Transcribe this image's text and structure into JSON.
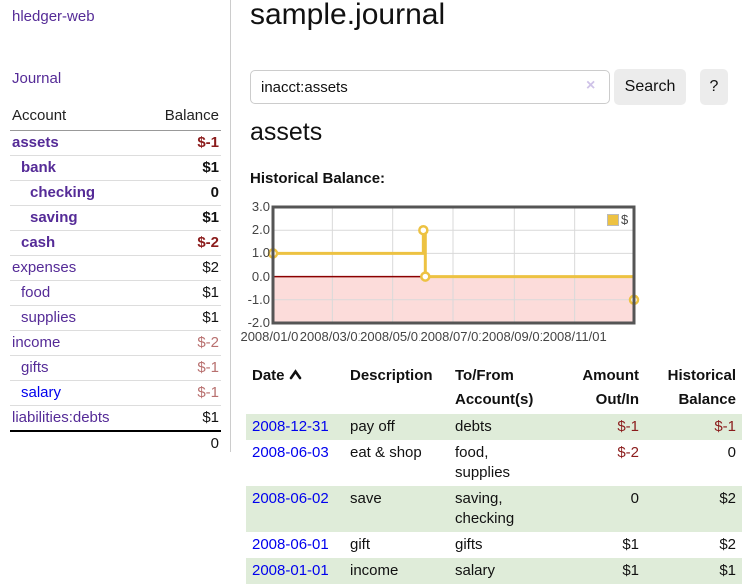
{
  "theme": {
    "purple": "#552b97",
    "blue": "#0000ee",
    "neg_strong": "#8b1c1c",
    "neg_weak": "#b8706f",
    "row_green": "#dfecd9",
    "gold": "#edc242",
    "pink": "#fcdcda",
    "dark_red": "#8b0000"
  },
  "sidebar": {
    "app_title": "hledger-web",
    "journal_label": "Journal",
    "accounts_table": {
      "headers": {
        "account": "Account",
        "balance": "Balance"
      },
      "rows": [
        {
          "name": "assets",
          "balance": "$-1",
          "indent": 0,
          "bold": true,
          "balance_style": "neg-strong",
          "link_style": "visited"
        },
        {
          "name": "bank",
          "balance": "$1",
          "indent": 1,
          "bold": true,
          "balance_style": "pos",
          "link_style": "visited"
        },
        {
          "name": "checking",
          "balance": "0",
          "indent": 2,
          "bold": true,
          "balance_style": "pos",
          "link_style": "visited"
        },
        {
          "name": "saving",
          "balance": "$1",
          "indent": 2,
          "bold": true,
          "balance_style": "pos",
          "link_style": "visited"
        },
        {
          "name": "cash",
          "balance": "$-2",
          "indent": 1,
          "bold": true,
          "balance_style": "neg-strong",
          "link_style": "visited"
        },
        {
          "name": "expenses",
          "balance": "$2",
          "indent": 0,
          "bold": false,
          "balance_style": "pos",
          "link_style": "visited"
        },
        {
          "name": "food",
          "balance": "$1",
          "indent": 1,
          "bold": false,
          "balance_style": "pos",
          "link_style": "visited"
        },
        {
          "name": "supplies",
          "balance": "$1",
          "indent": 1,
          "bold": false,
          "balance_style": "pos",
          "link_style": "visited"
        },
        {
          "name": "income",
          "balance": "$-2",
          "indent": 0,
          "bold": false,
          "balance_style": "neg-weak",
          "link_style": "visited"
        },
        {
          "name": "gifts",
          "balance": "$-1",
          "indent": 1,
          "bold": false,
          "balance_style": "neg-weak",
          "link_style": "visited"
        },
        {
          "name": "salary",
          "balance": "$-1",
          "indent": 1,
          "bold": false,
          "balance_style": "neg-weak",
          "link_style": "unvisited"
        },
        {
          "name": "liabilities:debts",
          "balance": "$1",
          "indent": 0,
          "bold": false,
          "balance_style": "pos",
          "link_style": "visited"
        }
      ],
      "total": "0"
    }
  },
  "header": {
    "title": "sample.journal",
    "search": {
      "value": "inacct:assets",
      "clear_icon": "×",
      "search_label": "Search",
      "help_label": "?"
    }
  },
  "account_view": {
    "heading": "assets",
    "chart_label": "Historical Balance:"
  },
  "chart_data": {
    "type": "line",
    "title": "Historical Balance",
    "step": true,
    "xlim": [
      "2008-01-01",
      "2008-12-31"
    ],
    "ylim": [
      -2,
      3
    ],
    "x_ticks": [
      "2008/01/01",
      "2008/03/01",
      "2008/05/01",
      "2008/07/01",
      "2008/09/01",
      "2008/11/01"
    ],
    "y_ticks": [
      "3.0",
      "2.0",
      "1.0",
      "0.0",
      "-1.0",
      "-2.0"
    ],
    "grid": true,
    "legend": [
      {
        "label": "$",
        "color": "#edc242"
      }
    ],
    "series": [
      {
        "name": "$",
        "points": [
          [
            "2008-01-01",
            1
          ],
          [
            "2008-06-01",
            2
          ],
          [
            "2008-06-03",
            0
          ],
          [
            "2008-12-31",
            -1
          ]
        ]
      }
    ],
    "line_color": "#edc242",
    "marker_fill": "#ffffff",
    "zero_line_color": "#8b0000",
    "negative_region_fill": "#fcdcda",
    "grid_color": "#d9d9d9",
    "border_color": "#555555"
  },
  "register": {
    "headers": {
      "date": "Date",
      "sort": "ascending",
      "description": "Description",
      "accounts": "To/From Account(s)",
      "amount": "Amount Out/In",
      "balance": "Historical Balance"
    },
    "rows": [
      {
        "date": "2008-12-31",
        "description": "pay off",
        "accounts": "debts",
        "amount": "$-1",
        "balance": "$-1"
      },
      {
        "date": "2008-06-03",
        "description": "eat & shop",
        "accounts": "food, supplies",
        "amount": "$-2",
        "balance": "0"
      },
      {
        "date": "2008-06-02",
        "description": "save",
        "accounts": "saving, checking",
        "amount": "0",
        "balance": "$2"
      },
      {
        "date": "2008-06-01",
        "description": "gift",
        "accounts": "gifts",
        "amount": "$1",
        "balance": "$2"
      },
      {
        "date": "2008-01-01",
        "description": "income",
        "accounts": "salary",
        "amount": "$1",
        "balance": "$1"
      }
    ]
  }
}
